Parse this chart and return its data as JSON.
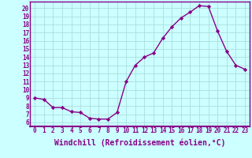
{
  "x": [
    0,
    1,
    2,
    3,
    4,
    5,
    6,
    7,
    8,
    9,
    10,
    11,
    12,
    13,
    14,
    15,
    16,
    17,
    18,
    19,
    20,
    21,
    22,
    23
  ],
  "y": [
    9.0,
    8.8,
    7.8,
    7.8,
    7.3,
    7.2,
    6.5,
    6.4,
    6.4,
    7.2,
    11.0,
    13.0,
    14.0,
    14.5,
    16.3,
    17.7,
    18.8,
    19.5,
    20.3,
    20.2,
    17.2,
    14.7,
    13.0,
    12.5
  ],
  "line_color": "#880088",
  "marker": "D",
  "marker_size": 2.2,
  "linewidth": 1.0,
  "xlabel": "Windchill (Refroidissement éolien,°C)",
  "xlim": [
    -0.5,
    23.5
  ],
  "ylim": [
    5.5,
    20.8
  ],
  "yticks": [
    6,
    7,
    8,
    9,
    10,
    11,
    12,
    13,
    14,
    15,
    16,
    17,
    18,
    19,
    20
  ],
  "xticks": [
    0,
    1,
    2,
    3,
    4,
    5,
    6,
    7,
    8,
    9,
    10,
    11,
    12,
    13,
    14,
    15,
    16,
    17,
    18,
    19,
    20,
    21,
    22,
    23
  ],
  "bg_color": "#ccffff",
  "grid_color": "#aadddd",
  "spine_color": "#880088",
  "tick_label_color": "#880088",
  "xlabel_color": "#880088",
  "tick_fontsize": 5.5,
  "xlabel_fontsize": 7.0
}
